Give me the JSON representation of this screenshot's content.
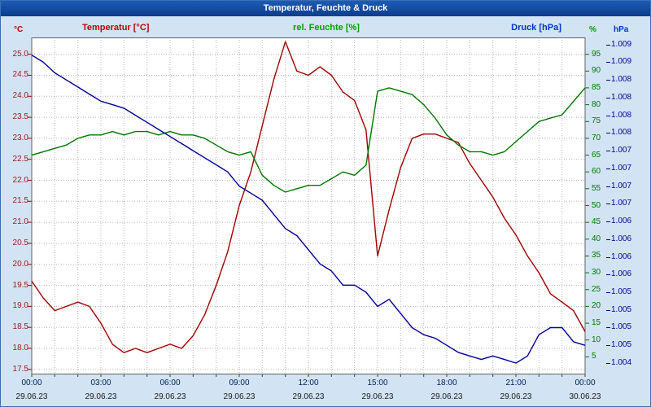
{
  "window": {
    "title": "Temperatur, Feuchte & Druck"
  },
  "header": {
    "temp_axis_title": "Temperatur [°C]",
    "hum_axis_title": "rel. Feuchte [%]",
    "press_axis_title": "Druck [hPa]",
    "temp_unit": "°C",
    "hum_unit": "%",
    "press_unit": "hPa"
  },
  "colors": {
    "temperature": "#a00000",
    "humidity": "#007700",
    "pressure": "#000099",
    "titlebar": "#0e3d8c",
    "panel_background": "#d2e4f4",
    "grid": "#b8b8b8"
  },
  "chart_data": {
    "type": "line",
    "title": "Temperatur, Feuchte & Druck",
    "grid": true,
    "x_hours": [
      0,
      0.5,
      1,
      1.5,
      2,
      2.5,
      3,
      3.5,
      4,
      4.5,
      5,
      5.5,
      6,
      6.5,
      7,
      7.5,
      8,
      8.5,
      9,
      9.5,
      10,
      10.5,
      11,
      11.5,
      12,
      12.5,
      13,
      13.5,
      14,
      14.5,
      15,
      15.5,
      16,
      16.5,
      17,
      17.5,
      18,
      18.5,
      19,
      19.5,
      20,
      20.5,
      21,
      21.5,
      22,
      22.5,
      23,
      23.5,
      24
    ],
    "series": [
      {
        "name": "Temperatur [°C]",
        "axis": "temp",
        "color": "#a00000",
        "values": [
          19.6,
          19.2,
          18.9,
          19.0,
          19.1,
          19.0,
          18.6,
          18.1,
          17.9,
          18.0,
          17.9,
          18.0,
          18.1,
          18.0,
          18.3,
          18.8,
          19.5,
          20.3,
          21.4,
          22.2,
          23.3,
          24.4,
          25.3,
          24.6,
          24.5,
          24.7,
          24.5,
          24.1,
          23.9,
          23.2,
          20.2,
          21.3,
          22.3,
          23.0,
          23.1,
          23.1,
          23.0,
          22.9,
          22.4,
          22.0,
          21.6,
          21.1,
          20.7,
          20.2,
          19.8,
          19.3,
          19.1,
          18.9,
          18.4
        ]
      },
      {
        "name": "rel. Feuchte [%]",
        "axis": "hum",
        "color": "#007700",
        "values": [
          65,
          66,
          67,
          68,
          70,
          71,
          71,
          72,
          71,
          72,
          72,
          71,
          72,
          71,
          71,
          70,
          68,
          66,
          65,
          66,
          59,
          56,
          54,
          55,
          56,
          56,
          58,
          60,
          59,
          62,
          84,
          85,
          84,
          83,
          80,
          76,
          71,
          68,
          66,
          66,
          65,
          66,
          69,
          72,
          75,
          76,
          77,
          81,
          85
        ]
      },
      {
        "name": "Druck [hPa]",
        "axis": "press",
        "color": "#000099",
        "values": [
          1008.85,
          1008.75,
          1008.6,
          1008.5,
          1008.4,
          1008.3,
          1008.2,
          1008.15,
          1008.1,
          1008.0,
          1007.9,
          1007.8,
          1007.7,
          1007.6,
          1007.5,
          1007.4,
          1007.3,
          1007.2,
          1007.0,
          1006.9,
          1006.8,
          1006.6,
          1006.4,
          1006.3,
          1006.1,
          1005.9,
          1005.8,
          1005.6,
          1005.6,
          1005.5,
          1005.3,
          1005.4,
          1005.2,
          1005.0,
          1004.9,
          1004.85,
          1004.75,
          1004.65,
          1004.6,
          1004.55,
          1004.6,
          1004.55,
          1004.5,
          1004.6,
          1004.9,
          1005.0,
          1005.0,
          1004.8,
          1004.75
        ]
      }
    ],
    "axes": {
      "temp": {
        "min": 17.4,
        "max": 25.4,
        "ticks": [
          25.0,
          24.5,
          24.0,
          23.5,
          23.0,
          22.5,
          22.0,
          21.5,
          21.0,
          20.5,
          20.0,
          19.5,
          19.0,
          18.5,
          18.0,
          17.5
        ],
        "tick_labels": [
          "25.0",
          "24.5",
          "24.0",
          "23.5",
          "23.0",
          "22.5",
          "22.0",
          "21.5",
          "21.0",
          "20.5",
          "20.0",
          "19.5",
          "19.0",
          "18.5",
          "18.0",
          "17.5"
        ]
      },
      "hum": {
        "min": 0,
        "max": 100,
        "ticks": [
          95,
          90,
          85,
          80,
          75,
          70,
          65,
          60,
          55,
          50,
          45,
          40,
          35,
          30,
          25,
          20,
          15,
          10,
          5
        ],
        "tick_labels": [
          "95",
          "90",
          "85",
          "80",
          "75",
          "70",
          "65",
          "60",
          "55",
          "50",
          "45",
          "40",
          "35",
          "30",
          "25",
          "20",
          "15",
          "10",
          "5"
        ]
      },
      "press": {
        "min": 1004.35,
        "max": 1009.1,
        "ticks": [
          1009.0,
          1008.75,
          1008.5,
          1008.25,
          1008.0,
          1007.75,
          1007.5,
          1007.25,
          1007.0,
          1006.75,
          1006.5,
          1006.25,
          1006.0,
          1005.75,
          1005.5,
          1005.25,
          1005.0,
          1004.75,
          1004.5
        ],
        "tick_labels": [
          "1.009",
          "1.009",
          "1.008",
          "1.008",
          "1.008",
          "1.008",
          "1.007",
          "1.007",
          "1.007",
          "1.007",
          "1.006",
          "1.006",
          "1.006",
          "1.006",
          "1.005",
          "1.005",
          "1.005",
          "1.005",
          "1.004"
        ]
      }
    },
    "x_axis": {
      "tick_hours": [
        0,
        3,
        6,
        9,
        12,
        15,
        18,
        21,
        24
      ],
      "tick_labels": [
        "00:00",
        "03:00",
        "06:00",
        "09:00",
        "12:00",
        "15:00",
        "18:00",
        "21:00",
        "00:00"
      ],
      "date_labels": [
        "29.06.23",
        "29.06.23",
        "29.06.23",
        "29.06.23",
        "29.06.23",
        "29.06.23",
        "29.06.23",
        "29.06.23",
        "30.06.23"
      ],
      "grid_interval_hours": 1
    },
    "legend_position": "top"
  }
}
